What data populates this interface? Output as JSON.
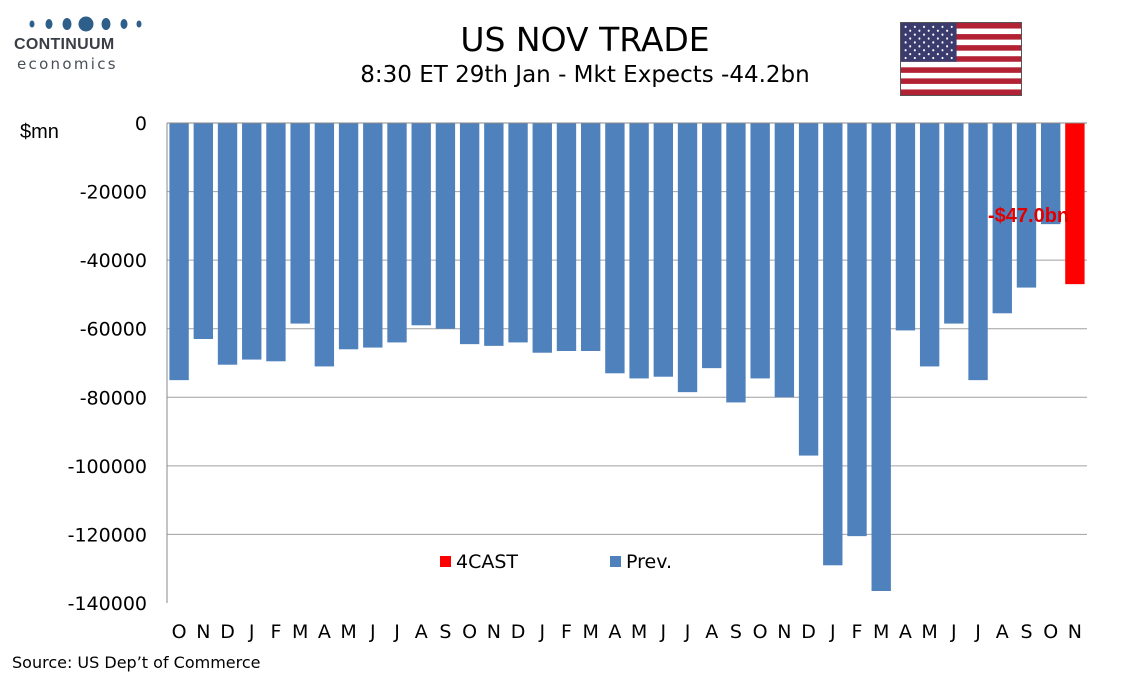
{
  "logo": {
    "name": "CONTINUUM",
    "sub": "economics"
  },
  "header": {
    "title": "US NOV TRADE",
    "subtitle": "8:30 ET 29th Jan - Mkt Expects -44.2bn"
  },
  "source": "Source: US Dep’t of Commerce",
  "colors": {
    "prev": "#4f81bd",
    "forecast": "#ff0000",
    "grid": "#a0a0a0"
  },
  "chart_data": {
    "type": "bar",
    "title": "US NOV TRADE",
    "ylabel": "$mn",
    "xlabel": "",
    "ylim": [
      -140000,
      0
    ],
    "yticks": [
      0,
      -20000,
      -40000,
      -60000,
      -80000,
      -100000,
      -120000,
      -140000
    ],
    "ytick_labels": [
      "0",
      "-20000",
      "-40000",
      "-60000",
      "-80000",
      "-100000",
      "-120000",
      "-140000"
    ],
    "grid": true,
    "legend": {
      "placement": "bottom-center",
      "entries": [
        "4CAST",
        "Prev."
      ]
    },
    "categories": [
      "O",
      "N",
      "D",
      "J",
      "F",
      "M",
      "A",
      "M",
      "J",
      "J",
      "A",
      "S",
      "O",
      "N",
      "D",
      "J",
      "F",
      "M",
      "A",
      "M",
      "J",
      "J",
      "A",
      "S",
      "O",
      "N",
      "D",
      "J",
      "F",
      "M",
      "A",
      "M",
      "J",
      "J",
      "A",
      "S",
      "O",
      "N"
    ],
    "series": [
      {
        "name": "Prev.",
        "color": "#4f81bd",
        "values": [
          -75000,
          -63000,
          -70500,
          -69000,
          -69500,
          -58500,
          -71000,
          -66000,
          -65500,
          -64000,
          -59000,
          -60000,
          -64500,
          -65000,
          -64000,
          -67000,
          -66500,
          -66500,
          -73000,
          -74500,
          -74000,
          -78500,
          -71500,
          -81500,
          -74500,
          -80000,
          -97000,
          -129000,
          -120500,
          -136500,
          -60500,
          -71000,
          -58500,
          -75000,
          -55500,
          -48000,
          -29500,
          null
        ]
      },
      {
        "name": "4CAST",
        "color": "#ff0000",
        "values": [
          null,
          null,
          null,
          null,
          null,
          null,
          null,
          null,
          null,
          null,
          null,
          null,
          null,
          null,
          null,
          null,
          null,
          null,
          null,
          null,
          null,
          null,
          null,
          null,
          null,
          null,
          null,
          null,
          null,
          null,
          null,
          null,
          null,
          null,
          null,
          null,
          null,
          -47000
        ]
      }
    ],
    "annotations": [
      {
        "text": "-$47.0bn",
        "category_index": 37,
        "value": -47000
      }
    ]
  }
}
